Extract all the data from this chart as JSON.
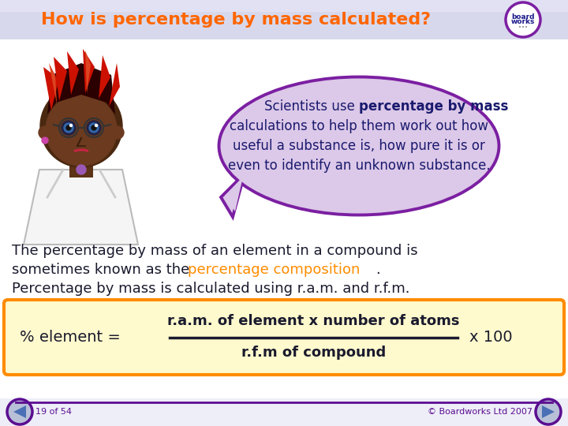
{
  "title": "How is percentage by mass calculated?",
  "title_color": "#FF6600",
  "header_bg_top": "#D8D8EC",
  "header_bg_bot": "#C0C0DC",
  "bubble_fill": "#DCC8E8",
  "bubble_edge": "#7B1FA2",
  "bubble_text_color": "#1a1a6e",
  "body_text_color": "#1a1a2e",
  "body_highlight_color": "#FF8C00",
  "box_bg": "#FFFACD",
  "box_edge": "#FF8C00",
  "formula_text_color": "#1a1a2e",
  "formula_numerator": "r.a.m. of element x number of atoms",
  "formula_denominator": "r.f.m of compound",
  "footer_color": "#5B0E91",
  "footer_left": "19 of 54",
  "footer_right": "© Boardworks Ltd 2007",
  "slide_bg": "#EEEEF8",
  "white_area_bg": "#FFFFFF",
  "body_line1": "The percentage by mass of an element in a compound is",
  "body_line2a": "sometimes known as the ",
  "body_line2b": "percentage composition",
  "body_line2c": ".",
  "body_line3": "Percentage by mass is calculated using r.a.m. and r.f.m."
}
